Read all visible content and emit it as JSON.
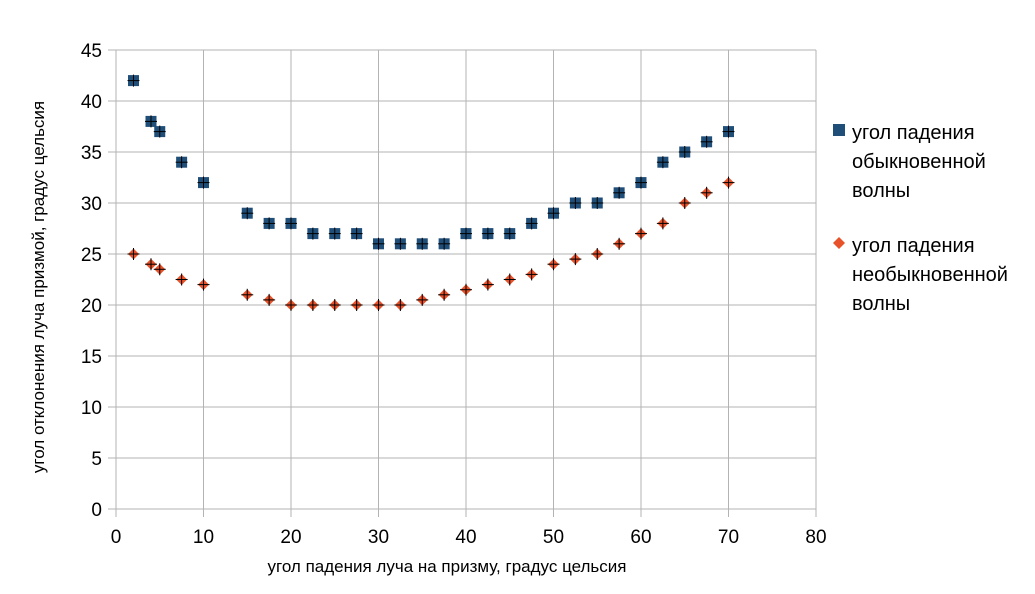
{
  "chart_data": {
    "type": "scatter",
    "title": "",
    "xlabel": "угол падения луча на призму, градус цельсия",
    "ylabel": "угол отклонения луча призмой, градус цельсия",
    "xlim": [
      0,
      80
    ],
    "ylim": [
      0,
      45
    ],
    "xticks": [
      "0",
      "10",
      "20",
      "30",
      "40",
      "50",
      "60",
      "70",
      "80"
    ],
    "yticks": [
      "0",
      "5",
      "10",
      "15",
      "20",
      "25",
      "30",
      "35",
      "40",
      "45"
    ],
    "grid": true,
    "legend_position": "right",
    "series": [
      {
        "name_lines": [
          "угол падения",
          "обыкновенной",
          "волны"
        ],
        "marker": "square",
        "color": "#1f4e79",
        "points": [
          [
            2,
            42
          ],
          [
            4,
            38
          ],
          [
            5,
            37
          ],
          [
            7.5,
            34
          ],
          [
            10,
            32
          ],
          [
            15,
            29
          ],
          [
            17.5,
            28
          ],
          [
            20,
            28
          ],
          [
            22.5,
            27
          ],
          [
            25,
            27
          ],
          [
            27.5,
            27
          ],
          [
            30,
            26
          ],
          [
            32.5,
            26
          ],
          [
            35,
            26
          ],
          [
            37.5,
            26
          ],
          [
            40,
            27
          ],
          [
            42.5,
            27
          ],
          [
            45,
            27
          ],
          [
            47.5,
            28
          ],
          [
            50,
            29
          ],
          [
            52.5,
            30
          ],
          [
            55,
            30
          ],
          [
            57.5,
            31
          ],
          [
            60,
            32
          ],
          [
            62.5,
            34
          ],
          [
            65,
            35
          ],
          [
            67.5,
            36
          ],
          [
            70,
            37
          ]
        ]
      },
      {
        "name_lines": [
          "угол падения",
          "необыкновенной",
          "волны"
        ],
        "marker": "diamond",
        "color": "#e8522a",
        "points": [
          [
            2,
            25
          ],
          [
            4,
            24
          ],
          [
            5,
            23.5
          ],
          [
            7.5,
            22.5
          ],
          [
            10,
            22
          ],
          [
            15,
            21
          ],
          [
            17.5,
            20.5
          ],
          [
            20,
            20
          ],
          [
            22.5,
            20
          ],
          [
            25,
            20
          ],
          [
            27.5,
            20
          ],
          [
            30,
            20
          ],
          [
            32.5,
            20
          ],
          [
            35,
            20.5
          ],
          [
            37.5,
            21
          ],
          [
            40,
            21.5
          ],
          [
            42.5,
            22
          ],
          [
            45,
            22.5
          ],
          [
            47.5,
            23
          ],
          [
            50,
            24
          ],
          [
            52.5,
            24.5
          ],
          [
            55,
            25
          ],
          [
            57.5,
            26
          ],
          [
            60,
            27
          ],
          [
            62.5,
            28
          ],
          [
            65,
            30
          ],
          [
            67.5,
            31
          ],
          [
            70,
            32
          ]
        ]
      }
    ]
  }
}
